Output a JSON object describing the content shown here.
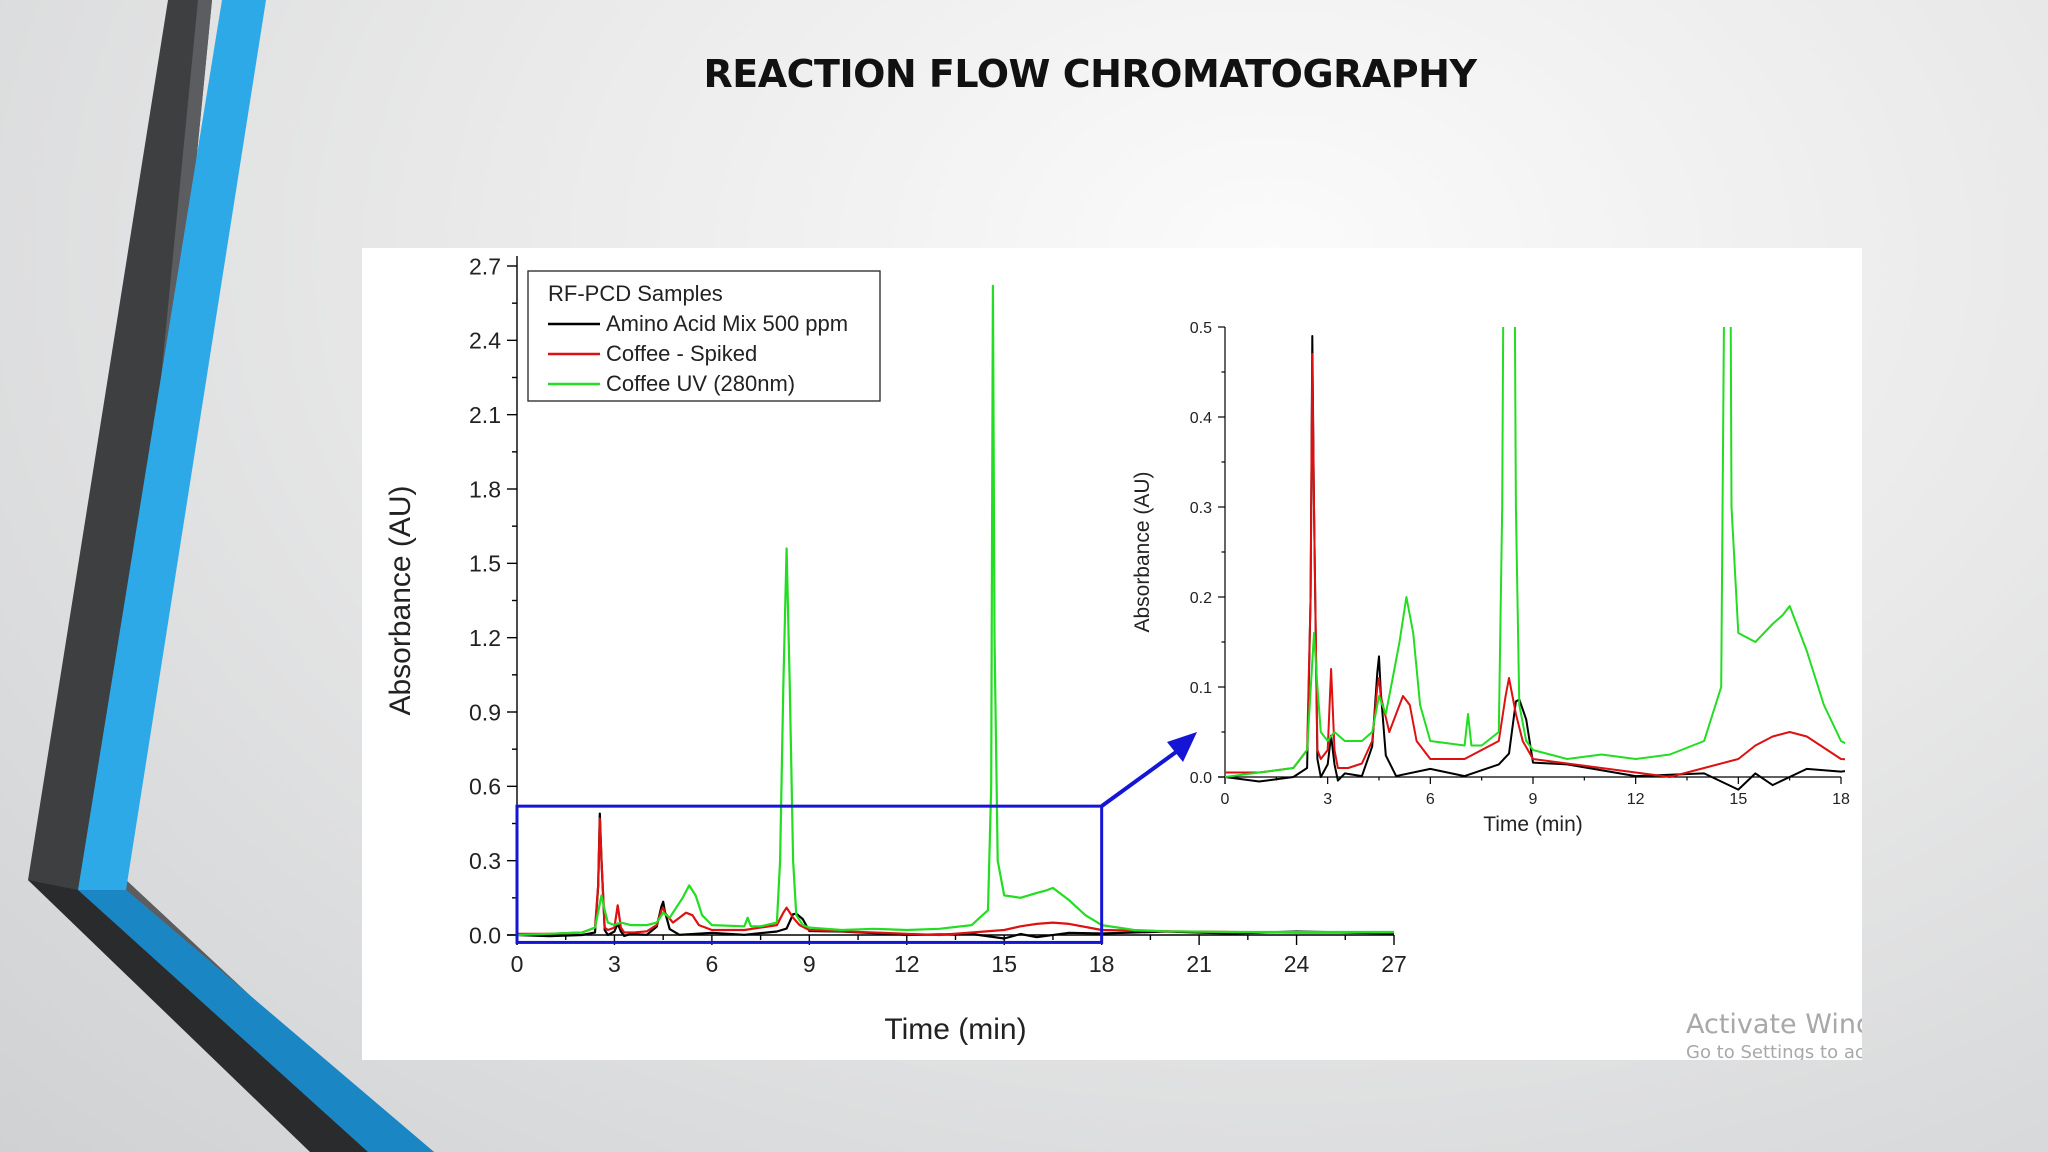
{
  "slide": {
    "title": "REACTION FLOW CHROMATOGRAPHY"
  },
  "watermark": {
    "line1": "Activate Windows",
    "line2": "Go to Settings to activate Windows."
  },
  "colors": {
    "accent_blue": "#2ea9e8",
    "accent_blue_dark": "#1b86c4",
    "accent_gray": "#3e3f41",
    "zoom_box": "#1515d6"
  },
  "chart_data": [
    {
      "type": "line",
      "xlabel": "Time (min)",
      "ylabel": "Absorbance (AU)",
      "xlim": [
        0,
        27
      ],
      "ylim": [
        0,
        2.7
      ],
      "xticks": [
        "0",
        "3",
        "6",
        "9",
        "12",
        "15",
        "18",
        "21",
        "24",
        "27"
      ],
      "yticks": [
        "0.0",
        "0.3",
        "0.6",
        "0.9",
        "1.2",
        "1.5",
        "1.8",
        "2.1",
        "2.4",
        "2.7"
      ],
      "legend": {
        "title": "RF-PCD Samples",
        "position": "top-left"
      },
      "zoom_box": {
        "x": [
          0,
          18
        ],
        "y": [
          0,
          0.52
        ]
      },
      "series": [
        {
          "name": "Amino Acid Mix 500 ppm",
          "color": "#000000",
          "x": [
            0,
            1,
            2,
            2.4,
            2.5,
            2.55,
            2.6,
            2.7,
            2.8,
            3.0,
            3.1,
            3.2,
            3.3,
            3.5,
            4.0,
            4.3,
            4.45,
            4.5,
            4.55,
            4.7,
            5.0,
            6.0,
            7.0,
            8.0,
            8.3,
            8.5,
            8.6,
            8.8,
            9.0,
            10,
            12,
            14,
            15,
            15.5,
            16,
            17,
            18,
            20,
            22,
            24,
            27
          ],
          "y": [
            0.0,
            -0.005,
            0.0,
            0.01,
            0.2,
            0.49,
            0.3,
            0.02,
            0.0,
            0.01,
            0.05,
            0.01,
            0.0,
            0.0,
            0.005,
            0.03,
            0.12,
            0.13,
            0.1,
            0.02,
            0.005,
            0.005,
            0.005,
            0.01,
            0.03,
            0.08,
            0.09,
            0.06,
            0.02,
            0.01,
            0.005,
            0.0,
            -0.01,
            0.0,
            -0.005,
            0.005,
            0.01,
            0.01,
            0.01,
            0.01,
            0.01
          ]
        },
        {
          "name": "Coffee - Spiked",
          "color": "#dd1111",
          "x": [
            0,
            1,
            2,
            2.4,
            2.5,
            2.55,
            2.6,
            2.7,
            2.8,
            3.0,
            3.1,
            3.2,
            3.3,
            3.6,
            4.0,
            4.3,
            4.45,
            4.5,
            4.55,
            4.8,
            5.0,
            5.2,
            5.4,
            5.6,
            6.0,
            7.0,
            8.0,
            8.2,
            8.3,
            8.5,
            8.7,
            9.0,
            10,
            12,
            13,
            14,
            15,
            15.5,
            16,
            16.5,
            17,
            18,
            20,
            22,
            24,
            27
          ],
          "y": [
            0.005,
            0.005,
            0.01,
            0.03,
            0.2,
            0.47,
            0.3,
            0.03,
            0.02,
            0.03,
            0.12,
            0.03,
            0.01,
            0.01,
            0.015,
            0.04,
            0.1,
            0.11,
            0.09,
            0.05,
            0.07,
            0.09,
            0.08,
            0.04,
            0.02,
            0.02,
            0.04,
            0.09,
            0.11,
            0.07,
            0.04,
            0.02,
            0.015,
            0.005,
            0.0,
            0.01,
            0.02,
            0.035,
            0.045,
            0.05,
            0.045,
            0.02,
            0.015,
            0.012,
            0.01,
            0.01
          ]
        },
        {
          "name": "Coffee UV (280nm)",
          "color": "#22dd22",
          "x": [
            0,
            1,
            2,
            2.4,
            2.6,
            2.7,
            2.8,
            3.0,
            3.2,
            3.5,
            4.0,
            4.3,
            4.5,
            4.7,
            4.9,
            5.1,
            5.3,
            5.5,
            5.7,
            6.0,
            7.0,
            7.1,
            7.2,
            7.5,
            8.0,
            8.1,
            8.2,
            8.3,
            8.4,
            8.5,
            8.6,
            8.8,
            9.0,
            10,
            11,
            12,
            13,
            14,
            14.5,
            14.6,
            14.65,
            14.7,
            14.8,
            15.0,
            15.5,
            16,
            16.3,
            16.5,
            17,
            17.5,
            18,
            19,
            20,
            22,
            24,
            27
          ],
          "y": [
            0.0,
            0.005,
            0.01,
            0.03,
            0.16,
            0.1,
            0.05,
            0.04,
            0.05,
            0.04,
            0.04,
            0.05,
            0.09,
            0.07,
            0.11,
            0.15,
            0.2,
            0.16,
            0.08,
            0.04,
            0.035,
            0.07,
            0.035,
            0.035,
            0.05,
            0.3,
            1.0,
            1.56,
            1.0,
            0.3,
            0.08,
            0.04,
            0.03,
            0.02,
            0.025,
            0.02,
            0.025,
            0.04,
            0.1,
            0.6,
            2.62,
            1.2,
            0.3,
            0.16,
            0.15,
            0.17,
            0.18,
            0.19,
            0.14,
            0.08,
            0.04,
            0.02,
            0.015,
            0.012,
            0.012,
            0.012
          ]
        }
      ]
    },
    {
      "type": "line",
      "xlabel": "Time (min)",
      "ylabel": "Absorbance (AU)",
      "xlim": [
        0,
        18
      ],
      "ylim": [
        0,
        0.5
      ],
      "xticks": [
        "0",
        "3",
        "6",
        "9",
        "12",
        "15",
        "18"
      ],
      "yticks": [
        "0.0",
        "0.1",
        "0.2",
        "0.3",
        "0.4",
        "0.5"
      ]
    }
  ]
}
